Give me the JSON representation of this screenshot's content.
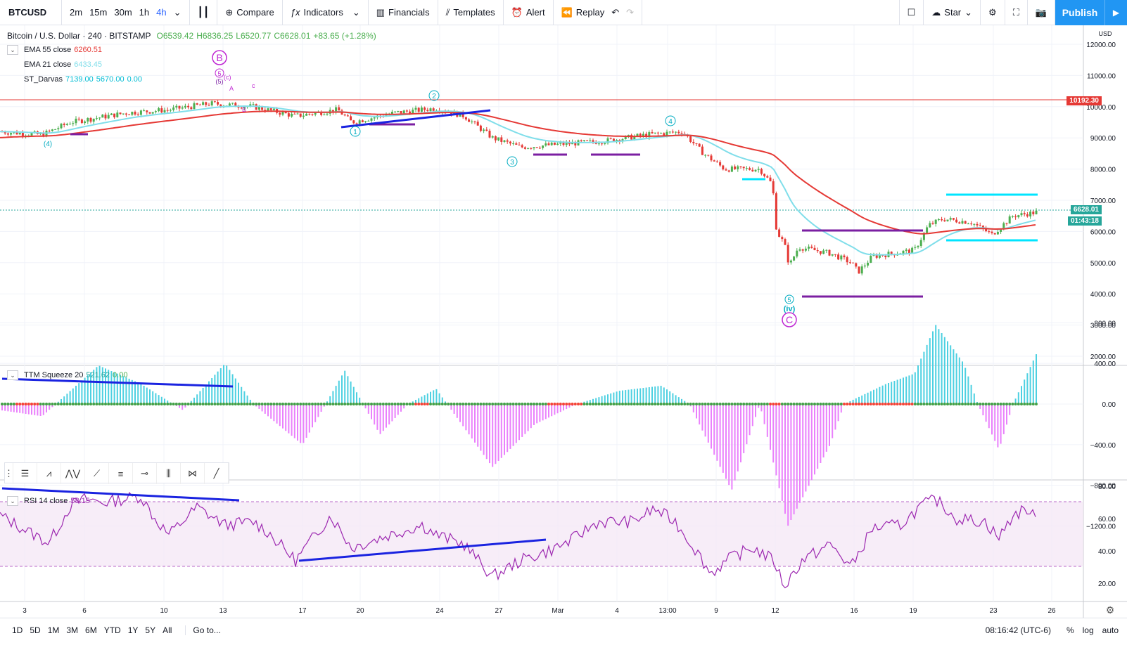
{
  "toolbar": {
    "symbol": "BTCUSD",
    "intervals": [
      "2m",
      "15m",
      "30m",
      "1h",
      "4h"
    ],
    "active_interval": "4h",
    "compare": "Compare",
    "indicators": "Indicators",
    "financials": "Financials",
    "templates": "Templates",
    "alert": "Alert",
    "replay": "Replay",
    "star": "Star",
    "publish": "Publish"
  },
  "header": {
    "pair": "Bitcoin / U.S. Dollar · 240 · BITSTAMP",
    "open": "O6539.42",
    "high": "H6836.25",
    "low": "L6520.77",
    "close": "C6628.01",
    "change": "+83.65 (+1.28%)"
  },
  "legend": {
    "ema55_label": "EMA 55 close",
    "ema55_value": "6260.51",
    "ema21_label": "EMA 21 close",
    "ema21_value": "6433.45",
    "darvas_label": "ST_Darvas",
    "darvas_v1": "7139.00",
    "darvas_v2": "5670.00",
    "darvas_v3": "0.00",
    "ttm_label": "TTM Squeeze 20",
    "ttm_v1": "521.62",
    "ttm_v2": "0.00",
    "rsi_label": "RSI 14 close",
    "rsi_value": "58.15"
  },
  "price_axis": {
    "currency": "USD",
    "ticks": [
      "12000.00",
      "11000.00",
      "10000.00",
      "9000.00",
      "8000.00",
      "7000.00",
      "6000.00",
      "5000.00",
      "4000.00",
      "3000.00",
      "2000.00"
    ],
    "red_line_label": "10192.30",
    "last_price_label": "6628.01",
    "countdown_label": "01:43:18"
  },
  "ttm_axis": {
    "ticks": [
      "800.00",
      "400.00",
      "0.00",
      "−400.00",
      "−800.00",
      "−1200.00"
    ]
  },
  "rsi_axis": {
    "ticks": [
      "80.00",
      "60.00",
      "40.00",
      "20.00"
    ]
  },
  "time_axis": {
    "ticks": [
      "3",
      "6",
      "10",
      "13",
      "17",
      "20",
      "24",
      "27",
      "Mar",
      "4",
      "13:00",
      "9",
      "12",
      "16",
      "19",
      "23",
      "26"
    ]
  },
  "wave_labels": {
    "B": "B",
    "C": "C",
    "w5a": "5",
    "w5b": "(5)",
    "wc": "(c)",
    "wA": "A",
    "wB": "B",
    "wc2": "c",
    "w4": "(4)",
    "w1": "1",
    "w2": "2",
    "w3": "3",
    "w4b": "4",
    "w5c": "5",
    "wiv": "(iv)"
  },
  "bottom": {
    "ranges": [
      "1D",
      "5D",
      "1M",
      "3M",
      "6M",
      "YTD",
      "1Y",
      "5Y",
      "All"
    ],
    "goto": "Go to...",
    "clock": "08:16:42 (UTC-6)",
    "percent": "%",
    "log": "log",
    "auto": "auto"
  },
  "colors": {
    "ema55": "#e53935",
    "ema21": "#80deea",
    "up": "#4caf50",
    "down": "#e53935",
    "accent": "#2196f3",
    "darvas": "#7b1fa2",
    "cyan": "#00e5ff"
  }
}
